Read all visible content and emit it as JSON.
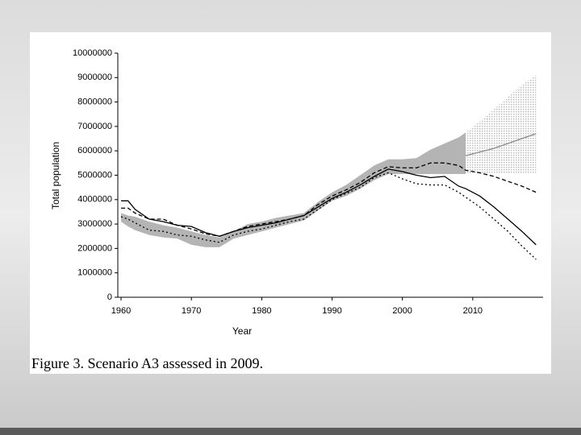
{
  "chart_data": {
    "type": "line",
    "xlabel": "Year",
    "ylabel": "Total population",
    "caption": "Figure 3.  Scenario A3 assessed in 2009.",
    "xlim": [
      1960,
      2020
    ],
    "xticks": [
      1960,
      1970,
      1980,
      1990,
      2000,
      2010
    ],
    "ylim": [
      0,
      10000000
    ],
    "yticks": [
      0,
      1000000,
      2000000,
      3000000,
      4000000,
      5000000,
      6000000,
      7000000,
      8000000,
      9000000,
      10000000
    ],
    "x": [
      1960,
      1961,
      1962,
      1964,
      1966,
      1968,
      1970,
      1972,
      1974,
      1976,
      1978,
      1980,
      1982,
      1984,
      1986,
      1988,
      1990,
      1992,
      1994,
      1996,
      1998,
      2000,
      2002,
      2004,
      2006,
      2008,
      2009,
      2011,
      2013,
      2015,
      2017,
      2019
    ],
    "bands": [
      {
        "color": "#b4b4b4",
        "pattern": false,
        "lower": [
          3100000,
          2900000,
          2750000,
          2550000,
          2450000,
          2400000,
          2150000,
          2050000,
          2050000,
          2400000,
          2550000,
          2700000,
          2850000,
          3000000,
          3150000,
          3550000,
          3950000,
          4150000,
          4450000,
          4800000,
          5050000,
          5050000,
          5050000,
          5050000,
          5050000,
          5050000,
          5050000,
          null,
          null,
          null,
          null,
          null
        ],
        "upper": [
          3450000,
          3350000,
          3300000,
          3100000,
          2950000,
          2850000,
          2700000,
          2550000,
          2450000,
          2700000,
          3000000,
          3100000,
          3250000,
          3350000,
          3450000,
          3900000,
          4300000,
          4600000,
          5000000,
          5400000,
          5650000,
          5650000,
          5700000,
          6050000,
          6300000,
          6550000,
          6750000,
          null,
          null,
          null,
          null,
          null
        ]
      },
      {
        "color": "#c8c8c8",
        "pattern": true,
        "lower": [
          null,
          null,
          null,
          null,
          null,
          null,
          null,
          null,
          null,
          null,
          null,
          null,
          null,
          null,
          null,
          null,
          null,
          null,
          null,
          null,
          null,
          null,
          null,
          null,
          null,
          null,
          5050000,
          5050000,
          5050000,
          5050000,
          5050000,
          5050000
        ],
        "upper": [
          null,
          null,
          null,
          null,
          null,
          null,
          null,
          null,
          null,
          null,
          null,
          null,
          null,
          null,
          null,
          null,
          null,
          null,
          null,
          null,
          null,
          null,
          null,
          null,
          null,
          null,
          6750000,
          7200000,
          7700000,
          8200000,
          8700000,
          9100000
        ]
      }
    ],
    "series": [
      {
        "color": "#000000",
        "dash": "none",
        "values": [
          3950000,
          3950000,
          3600000,
          3200000,
          3100000,
          2950000,
          2900000,
          2650000,
          2500000,
          2700000,
          2850000,
          2950000,
          3050000,
          3200000,
          3350000,
          3700000,
          4050000,
          4300000,
          4600000,
          4950000,
          5250000,
          5150000,
          5000000,
          4900000,
          4950000,
          4550000,
          4450000,
          4150000,
          3700000,
          3200000,
          2700000,
          2150000
        ]
      },
      {
        "color": "#000000",
        "dash": "5,3",
        "values": [
          3650000,
          3650000,
          3450000,
          3200000,
          3200000,
          2950000,
          2800000,
          2600000,
          2500000,
          2700000,
          2900000,
          3000000,
          3100000,
          3200000,
          3350000,
          3800000,
          4150000,
          4400000,
          4700000,
          5100000,
          5350000,
          5300000,
          5300000,
          5500000,
          5500000,
          5400000,
          5200000,
          5100000,
          4950000,
          4750000,
          4550000,
          4300000
        ]
      },
      {
        "color": "#000000",
        "dash": "2,3",
        "values": [
          3300000,
          3200000,
          3050000,
          2750000,
          2700000,
          2550000,
          2500000,
          2350000,
          2250000,
          2550000,
          2700000,
          2800000,
          2950000,
          3100000,
          3200000,
          3600000,
          4000000,
          4250000,
          4500000,
          4900000,
          5100000,
          4850000,
          4650000,
          4600000,
          4600000,
          4300000,
          4100000,
          3700000,
          3200000,
          2700000,
          2100000,
          1550000
        ]
      },
      {
        "color": "#8a8a8a",
        "dash": "none",
        "values": [
          null,
          null,
          null,
          null,
          null,
          null,
          null,
          null,
          null,
          null,
          null,
          null,
          null,
          null,
          null,
          null,
          null,
          null,
          null,
          null,
          null,
          null,
          null,
          null,
          null,
          null,
          5800000,
          5950000,
          6100000,
          6300000,
          6500000,
          6700000
        ]
      }
    ]
  }
}
